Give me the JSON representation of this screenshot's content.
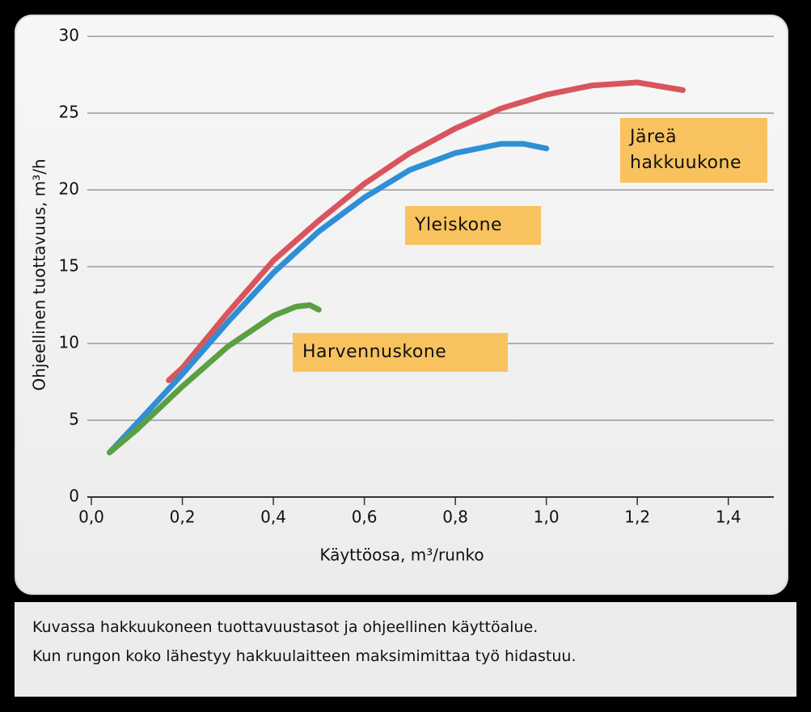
{
  "chart_data": {
    "type": "line",
    "x_label": "Käyttöosa, m³/runko",
    "y_label": "Ohjeellinen tuottavuus, m³/h",
    "xlim": [
      0,
      1.5
    ],
    "ylim": [
      0,
      30
    ],
    "xticks": [
      {
        "value": 0,
        "label": "0,0"
      },
      {
        "value": 0.2,
        "label": "0,2"
      },
      {
        "value": 0.4,
        "label": "0,4"
      },
      {
        "value": 0.6,
        "label": "0,6"
      },
      {
        "value": 0.8,
        "label": "0,8"
      },
      {
        "value": 1.0,
        "label": "1,0"
      },
      {
        "value": 1.2,
        "label": "1,2"
      },
      {
        "value": 1.4,
        "label": "1,4"
      }
    ],
    "yticks": [
      0,
      5,
      10,
      15,
      20,
      25,
      30
    ],
    "grid": true,
    "series": [
      {
        "name": "Järeä hakkuukone",
        "color": "#d9555e",
        "x": [
          0.17,
          0.2,
          0.3,
          0.4,
          0.5,
          0.6,
          0.7,
          0.8,
          0.9,
          1.0,
          1.1,
          1.2,
          1.3
        ],
        "values": [
          7.6,
          8.4,
          12.0,
          15.4,
          18.0,
          20.4,
          22.4,
          24.0,
          25.3,
          26.2,
          26.8,
          27.0,
          26.5
        ]
      },
      {
        "name": "Yleiskone",
        "color": "#2f8fd6",
        "x": [
          0.04,
          0.1,
          0.2,
          0.3,
          0.4,
          0.5,
          0.6,
          0.7,
          0.8,
          0.9,
          0.95,
          1.0
        ],
        "values": [
          2.9,
          4.8,
          8.0,
          11.4,
          14.6,
          17.3,
          19.5,
          21.3,
          22.4,
          23.0,
          23.0,
          22.7
        ]
      },
      {
        "name": "Harvennuskone",
        "color": "#5aa041",
        "x": [
          0.04,
          0.1,
          0.2,
          0.3,
          0.4,
          0.45,
          0.48,
          0.5
        ],
        "values": [
          2.9,
          4.4,
          7.2,
          9.8,
          11.8,
          12.4,
          12.5,
          12.2
        ]
      }
    ]
  },
  "caption": [
    "Kuvassa hakkuukoneen tuottavuustasot ja ohjeellinen käyttöalue.",
    "Kun rungon koko lähestyy hakkuulaitteen maksimimittaa työ hidastuu."
  ]
}
